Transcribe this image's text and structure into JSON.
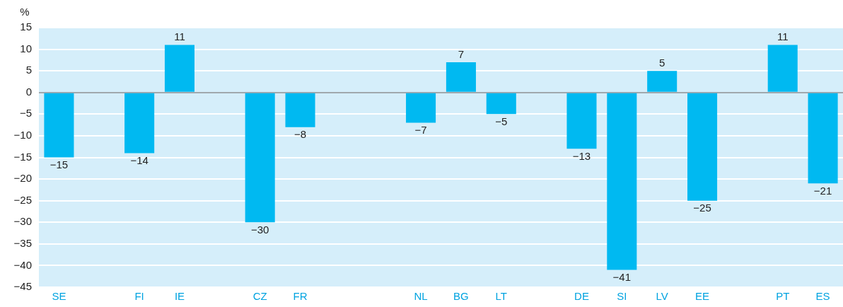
{
  "chart_data": {
    "type": "bar",
    "ylabel": "%",
    "categories": [
      "SE",
      null,
      "FI",
      "IE",
      null,
      "CZ",
      "FR",
      null,
      null,
      "NL",
      "BG",
      "LT",
      null,
      "DE",
      "SI",
      "LV",
      "EE",
      null,
      "PT",
      "ES"
    ],
    "values": [
      -15,
      null,
      -14,
      11,
      null,
      -30,
      -8,
      null,
      null,
      -7,
      7,
      -5,
      null,
      -13,
      -41,
      5,
      -25,
      null,
      11,
      -21
    ],
    "value_labels": [
      "−15",
      null,
      "−14",
      "11",
      null,
      "−30",
      "−8",
      null,
      null,
      "−7",
      "7",
      "−5",
      null,
      "−13",
      "−41",
      "5",
      "−25",
      null,
      "11",
      "−21"
    ],
    "color": "#00b9f1",
    "ylim": [
      -45,
      15
    ],
    "yticks": [
      -45,
      -40,
      -35,
      -30,
      -25,
      -20,
      -15,
      -10,
      -5,
      0,
      5,
      10,
      15
    ],
    "grid": "y",
    "legend": false
  }
}
